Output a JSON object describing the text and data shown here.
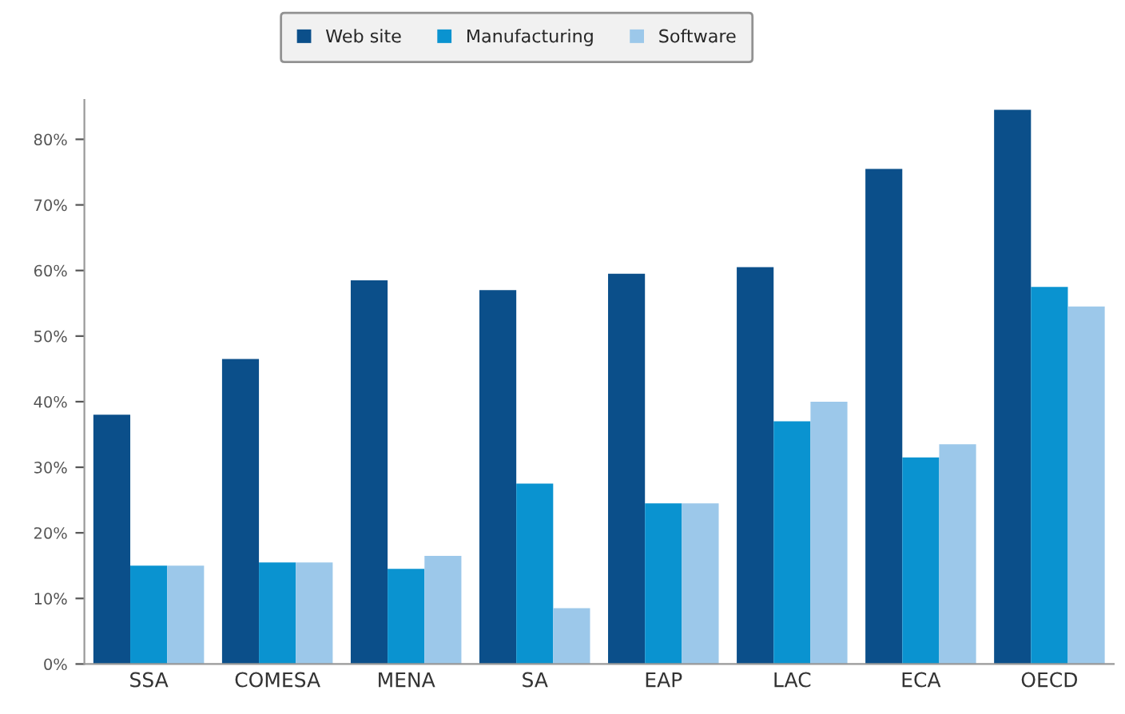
{
  "chart_data": {
    "type": "bar",
    "categories": [
      "SSA",
      "COMESA",
      "MENA",
      "SA",
      "EAP",
      "LAC",
      "ECA",
      "OECD"
    ],
    "series": [
      {
        "name": "Web site",
        "color": "#0b4f8a",
        "values": [
          38,
          46.5,
          58.5,
          57,
          59.5,
          60.5,
          75.5,
          84.5
        ]
      },
      {
        "name": "Manufacturing",
        "color": "#0a93d0",
        "values": [
          15,
          15.5,
          14.5,
          27.5,
          24.5,
          37,
          31.5,
          57.5
        ]
      },
      {
        "name": "Software",
        "color": "#9cc8ea",
        "values": [
          15,
          15.5,
          16.5,
          8.5,
          24.5,
          40,
          33.5,
          54.5
        ]
      }
    ],
    "ylim": [
      0,
      86
    ],
    "yticks": [
      {
        "value": 0,
        "label": "0%"
      },
      {
        "value": 10,
        "label": "10%"
      },
      {
        "value": 20,
        "label": "20%"
      },
      {
        "value": 30,
        "label": "30%"
      },
      {
        "value": 40,
        "label": "40%"
      },
      {
        "value": 50,
        "label": "50%"
      },
      {
        "value": 60,
        "label": "60%"
      },
      {
        "value": 70,
        "label": "70%"
      },
      {
        "value": 80,
        "label": "80%"
      }
    ],
    "grid": false,
    "legend": "top"
  }
}
